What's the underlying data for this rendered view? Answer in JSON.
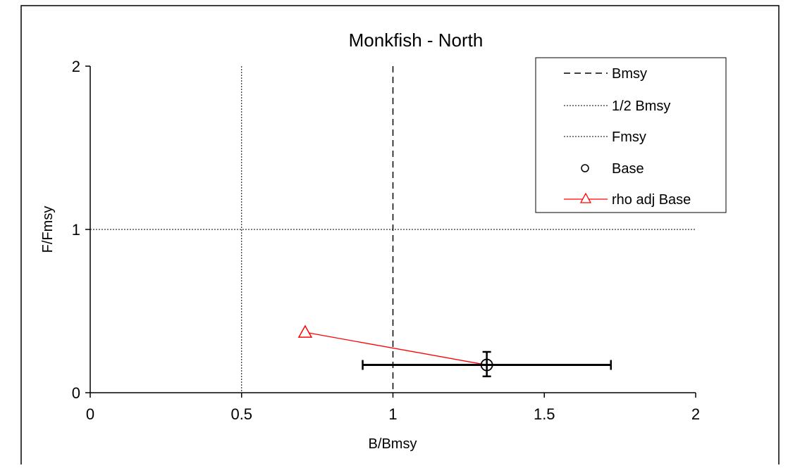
{
  "chart_data": {
    "type": "scatter",
    "title": "Monkfish - North",
    "xlabel": "B/Bmsy",
    "ylabel": "F/Fmsy",
    "xlim": [
      0,
      2
    ],
    "ylim": [
      0,
      2
    ],
    "x_ticks": [
      "0",
      "0.5",
      "1",
      "1.5",
      "2"
    ],
    "y_ticks": [
      "0",
      "1",
      "2"
    ],
    "grid": false,
    "legend_position": "top-right",
    "reference_lines": [
      {
        "name": "Bmsy",
        "orientation": "vertical",
        "value": 1,
        "style": "dashed"
      },
      {
        "name": "1/2 Bmsy",
        "orientation": "vertical",
        "value": 0.5,
        "style": "dotted"
      },
      {
        "name": "Fmsy",
        "orientation": "horizontal",
        "value": 1,
        "style": "dotted"
      }
    ],
    "series": [
      {
        "name": "Base",
        "marker": "circle",
        "color": "#000000",
        "points": [
          {
            "x": 1.31,
            "y": 0.17,
            "x_error": [
              0.9,
              1.72
            ],
            "y_error": [
              0.1,
              0.25
            ]
          }
        ]
      },
      {
        "name": "rho adj Base",
        "marker": "triangle",
        "color": "#ff0000",
        "points": [
          {
            "x": 0.71,
            "y": 0.37
          },
          {
            "x": 1.31,
            "y": 0.17
          }
        ]
      }
    ]
  }
}
